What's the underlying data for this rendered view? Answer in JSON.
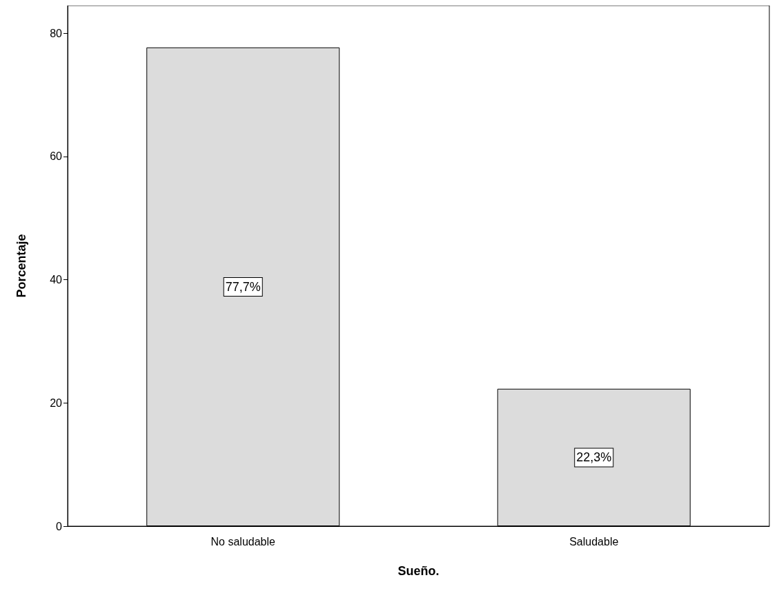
{
  "chart_data": {
    "type": "bar",
    "xlabel": "Sueño.",
    "ylabel": "Porcentaje",
    "categories": [
      "No saludable",
      "Saludable"
    ],
    "values": [
      77.7,
      22.3
    ],
    "value_labels": [
      "77,7%",
      "22,3%"
    ],
    "color": "#dcdcdc",
    "ylim": [
      0,
      84.5
    ],
    "yticks": [
      0,
      20,
      40,
      60,
      80
    ],
    "grid": false
  }
}
